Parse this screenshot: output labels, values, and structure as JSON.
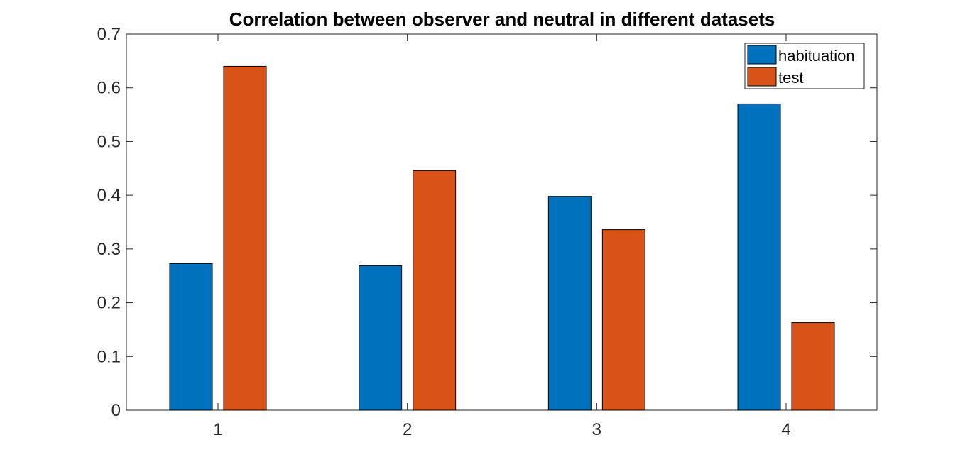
{
  "chart_data": {
    "type": "bar",
    "title": "Correlation between observer and neutral in different datasets",
    "xlabel": "",
    "ylabel": "",
    "categories": [
      "1",
      "2",
      "3",
      "4"
    ],
    "series": [
      {
        "name": "habituation",
        "color": "#0072BD",
        "values": [
          0.273,
          0.269,
          0.398,
          0.57
        ]
      },
      {
        "name": "test",
        "color": "#D95319",
        "values": [
          0.64,
          0.446,
          0.336,
          0.163
        ]
      }
    ],
    "ylim": [
      0,
      0.7
    ],
    "yticks": [
      "0",
      "0.1",
      "0.2",
      "0.3",
      "0.4",
      "0.5",
      "0.6",
      "0.7"
    ],
    "grid": false,
    "legend": "top-right"
  }
}
